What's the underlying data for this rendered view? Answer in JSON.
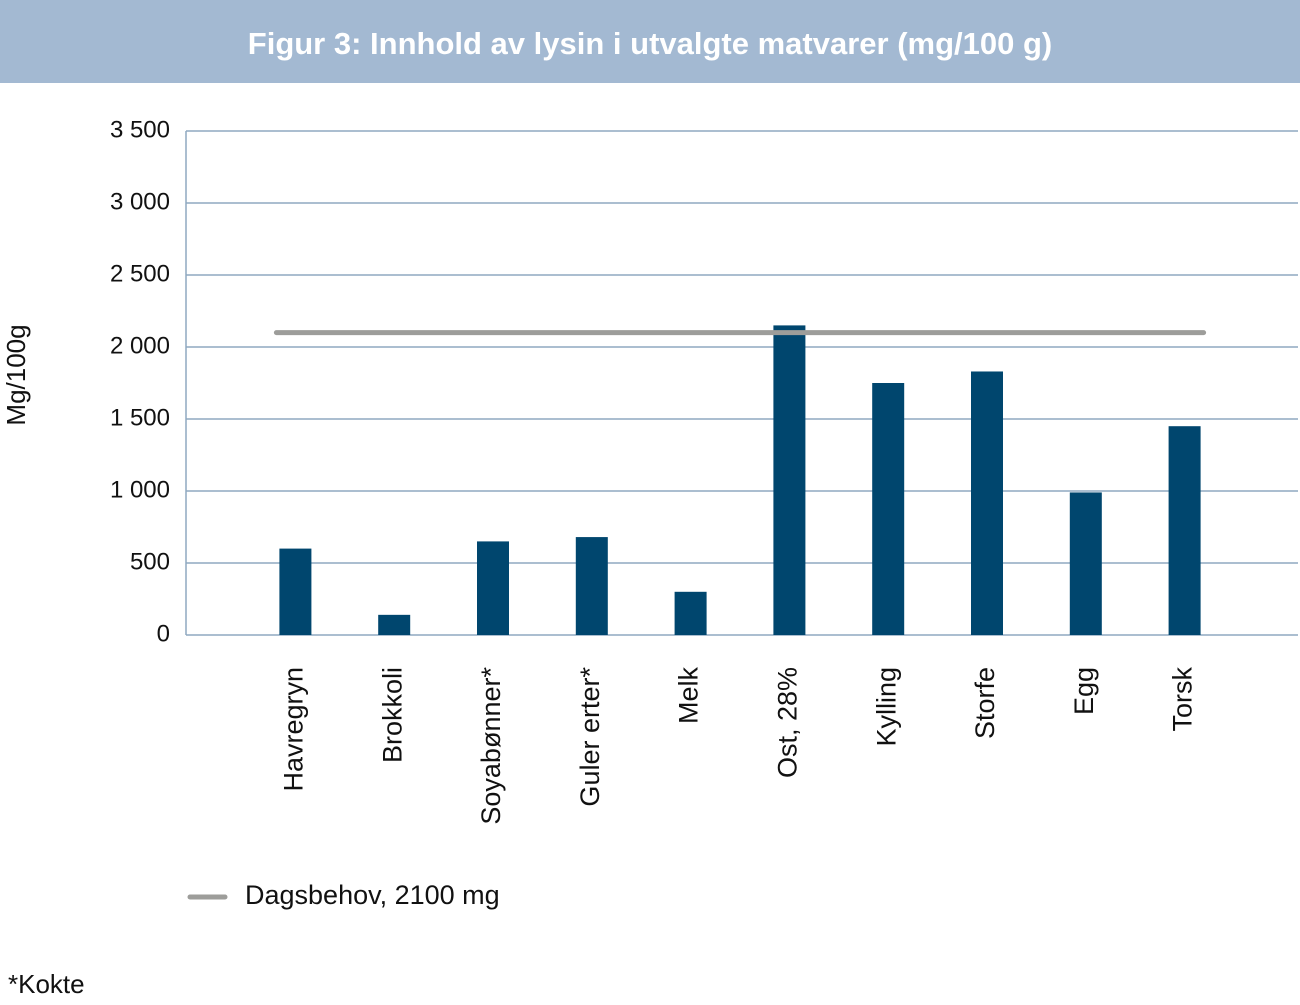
{
  "chart_data": {
    "type": "bar",
    "title": "Figur 3: Innhold av lysin i utvalgte matvarer (mg/100 g)",
    "y_label": "Mg/100g",
    "categories": [
      "Havregryn",
      "Brokkoli",
      "Soyabønner*",
      "Guler erter*",
      "Melk",
      "Ost, 28%",
      "Kylling",
      "Storfe",
      "Egg",
      "Torsk"
    ],
    "values": [
      600,
      140,
      650,
      680,
      300,
      2150,
      1750,
      1830,
      990,
      1450
    ],
    "color": "#00466e",
    "ylim": [
      0,
      3500
    ],
    "yticks": [
      0,
      500,
      {
        "value": 1000,
        "label": "1 000"
      },
      {
        "value": 1500,
        "label": "1 500"
      },
      {
        "value": 2000,
        "label": "2 000"
      },
      {
        "value": 2500,
        "label": "2 500"
      },
      {
        "value": 3000,
        "label": "3 000"
      },
      {
        "value": 3500,
        "label": "3 500"
      }
    ],
    "grid": true,
    "reference_line": {
      "name": "Dagsbehov, 2100 mg",
      "value": 2100,
      "color": "#9d9d9a"
    },
    "footnote": "*Kokte"
  }
}
